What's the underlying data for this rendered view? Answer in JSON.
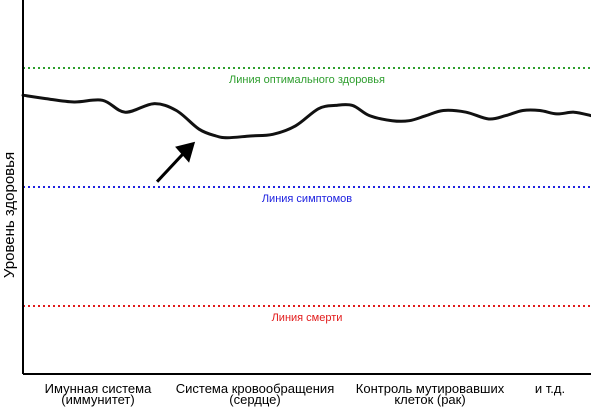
{
  "chart_data": {
    "type": "line",
    "ylabel": "Уровень здоровья",
    "categories": [
      [
        "Имунная система",
        "(иммунитет)"
      ],
      [
        "Система кровообращения",
        "(сердце)"
      ],
      [
        "Контроль мутировавших",
        "клеток (рак)"
      ],
      [
        "и т.д."
      ]
    ],
    "reference_lines": [
      {
        "label": "Линия оптимального здоровья",
        "value": 90,
        "color": "#2e9e2e"
      },
      {
        "label": "Линия симптомов",
        "value": 55,
        "color": "#1e22e0"
      },
      {
        "label": "Линия смерти",
        "value": 20,
        "color": "#e21b1b"
      }
    ],
    "x": [
      0,
      4,
      9,
      14,
      18,
      23,
      27,
      31,
      34,
      36,
      40,
      44,
      48,
      52,
      55,
      58,
      61,
      65,
      68,
      71,
      74,
      78,
      82,
      85,
      88,
      91,
      94,
      97,
      100
    ],
    "health": [
      82,
      81,
      80,
      80.5,
      77,
      79.5,
      77.5,
      72,
      70,
      69.5,
      70,
      70.5,
      73,
      78,
      79,
      79,
      76,
      74.5,
      74.5,
      76,
      77.5,
      77,
      75,
      76,
      77.5,
      77.5,
      76.5,
      77,
      76
    ],
    "xlim": [
      0,
      100
    ],
    "ylim": [
      0,
      110
    ],
    "annotation": {
      "type": "arrow",
      "points_to_x": 31
    }
  }
}
